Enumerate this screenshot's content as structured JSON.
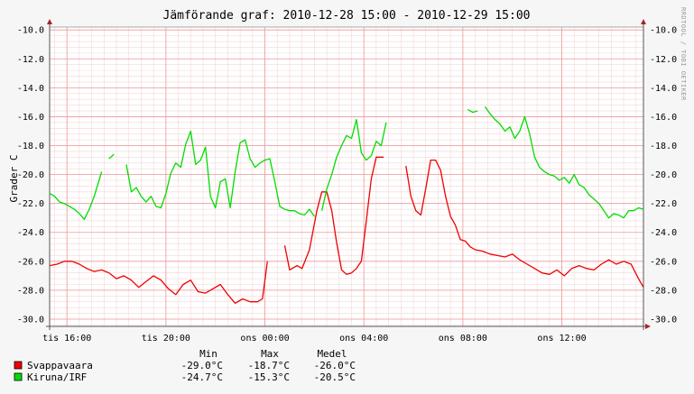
{
  "chart_data": {
    "type": "line",
    "title": "Jämförande graf: 2010-12-28 15:00 - 2010-12-29 15:00",
    "ylabel": "Grader C",
    "watermark": "RRDTOOL / TOBI OETIKER",
    "ylim": [
      -30.5,
      -9.8
    ],
    "xlim_hours": [
      15.3,
      39.3
    ],
    "y_ticks": [
      "-10.0",
      "-12.0",
      "-14.0",
      "-16.0",
      "-18.0",
      "-20.0",
      "-22.0",
      "-24.0",
      "-26.0",
      "-28.0",
      "-30.0"
    ],
    "y_tick_values": [
      -10,
      -12,
      -14,
      -16,
      -18,
      -20,
      -22,
      -24,
      -26,
      -28,
      -30
    ],
    "x_ticks": [
      {
        "label": "tis 16:00",
        "hour": 16
      },
      {
        "label": "tis 20:00",
        "hour": 20
      },
      {
        "label": "ons 00:00",
        "hour": 24
      },
      {
        "label": "ons 04:00",
        "hour": 28
      },
      {
        "label": "ons 08:00",
        "hour": 32
      },
      {
        "label": "ons 12:00",
        "hour": 36
      }
    ],
    "grid": true,
    "legend_header": {
      "min": "Min",
      "max": "Max",
      "avg": "Medel"
    },
    "series": [
      {
        "name": "Svappavaara",
        "color": "#ee0000",
        "stats": {
          "min": "-29.0°C",
          "max": "-18.7°C",
          "avg": "-26.0°C"
        },
        "segments": [
          [
            [
              15.3,
              -26.3
            ],
            [
              15.6,
              -26.2
            ],
            [
              15.9,
              -26.0
            ],
            [
              16.2,
              -26.0
            ],
            [
              16.5,
              -26.2
            ],
            [
              16.8,
              -26.5
            ],
            [
              17.1,
              -26.7
            ],
            [
              17.4,
              -26.6
            ],
            [
              17.7,
              -26.8
            ],
            [
              18.0,
              -27.2
            ],
            [
              18.3,
              -27.0
            ],
            [
              18.6,
              -27.3
            ],
            [
              18.9,
              -27.8
            ],
            [
              19.2,
              -27.4
            ],
            [
              19.5,
              -27.0
            ],
            [
              19.8,
              -27.3
            ],
            [
              20.1,
              -27.9
            ],
            [
              20.4,
              -28.3
            ],
            [
              20.7,
              -27.6
            ],
            [
              21.0,
              -27.3
            ],
            [
              21.3,
              -28.1
            ],
            [
              21.6,
              -28.2
            ],
            [
              21.9,
              -27.9
            ],
            [
              22.2,
              -27.6
            ],
            [
              22.5,
              -28.3
            ],
            [
              22.8,
              -28.9
            ],
            [
              23.1,
              -28.6
            ],
            [
              23.4,
              -28.8
            ],
            [
              23.7,
              -28.8
            ],
            [
              23.9,
              -28.6
            ],
            [
              24.1,
              -26.0
            ]
          ],
          [
            [
              24.8,
              -24.9
            ],
            [
              25.0,
              -26.6
            ],
            [
              25.3,
              -26.3
            ],
            [
              25.5,
              -26.5
            ],
            [
              25.8,
              -25.2
            ],
            [
              26.1,
              -22.5
            ],
            [
              26.3,
              -21.2
            ],
            [
              26.5,
              -21.2
            ],
            [
              26.7,
              -22.5
            ],
            [
              26.9,
              -24.7
            ],
            [
              27.1,
              -26.6
            ],
            [
              27.3,
              -26.9
            ],
            [
              27.5,
              -26.8
            ],
            [
              27.7,
              -26.5
            ],
            [
              27.9,
              -26.0
            ],
            [
              28.1,
              -23.2
            ],
            [
              28.3,
              -20.3
            ],
            [
              28.5,
              -18.8
            ],
            [
              28.8,
              -18.8
            ]
          ],
          [
            [
              29.7,
              -19.4
            ],
            [
              29.9,
              -21.5
            ],
            [
              30.1,
              -22.5
            ],
            [
              30.3,
              -22.8
            ],
            [
              30.5,
              -21.0
            ],
            [
              30.7,
              -19.0
            ],
            [
              30.9,
              -19.0
            ],
            [
              31.1,
              -19.7
            ],
            [
              31.3,
              -21.5
            ],
            [
              31.5,
              -22.9
            ],
            [
              31.7,
              -23.5
            ],
            [
              31.9,
              -24.5
            ],
            [
              32.1,
              -24.6
            ],
            [
              32.3,
              -25.0
            ],
            [
              32.5,
              -25.2
            ],
            [
              32.8,
              -25.3
            ],
            [
              33.1,
              -25.5
            ],
            [
              33.4,
              -25.6
            ],
            [
              33.7,
              -25.7
            ],
            [
              34.0,
              -25.5
            ],
            [
              34.3,
              -25.9
            ],
            [
              34.6,
              -26.2
            ],
            [
              34.9,
              -26.5
            ],
            [
              35.2,
              -26.8
            ],
            [
              35.5,
              -26.9
            ],
            [
              35.8,
              -26.6
            ],
            [
              36.1,
              -27.0
            ],
            [
              36.4,
              -26.5
            ],
            [
              36.7,
              -26.3
            ],
            [
              37.0,
              -26.5
            ],
            [
              37.3,
              -26.6
            ],
            [
              37.6,
              -26.2
            ],
            [
              37.9,
              -25.9
            ],
            [
              38.2,
              -26.2
            ],
            [
              38.5,
              -26.0
            ],
            [
              38.8,
              -26.2
            ],
            [
              39.1,
              -27.2
            ],
            [
              39.3,
              -27.8
            ]
          ]
        ]
      },
      {
        "name": "Kiruna/IRF",
        "color": "#00dd00",
        "stats": {
          "min": "-24.7°C",
          "max": "-15.3°C",
          "avg": "-20.5°C"
        },
        "segments": [
          [
            [
              15.3,
              -21.3
            ],
            [
              15.5,
              -21.5
            ],
            [
              15.7,
              -21.9
            ],
            [
              15.9,
              -22.0
            ],
            [
              16.1,
              -22.2
            ],
            [
              16.3,
              -22.4
            ],
            [
              16.5,
              -22.7
            ],
            [
              16.7,
              -23.1
            ],
            [
              16.9,
              -22.4
            ],
            [
              17.1,
              -21.5
            ],
            [
              17.3,
              -20.4
            ],
            [
              17.4,
              -19.8
            ]
          ],
          [
            [
              17.7,
              -18.9
            ],
            [
              17.9,
              -18.6
            ]
          ],
          [
            [
              18.4,
              -19.3
            ],
            [
              18.6,
              -21.2
            ],
            [
              18.8,
              -20.9
            ],
            [
              19.0,
              -21.5
            ],
            [
              19.2,
              -21.9
            ],
            [
              19.4,
              -21.5
            ],
            [
              19.6,
              -22.2
            ],
            [
              19.8,
              -22.3
            ],
            [
              20.0,
              -21.3
            ],
            [
              20.2,
              -19.9
            ],
            [
              20.4,
              -19.2
            ],
            [
              20.6,
              -19.5
            ],
            [
              20.8,
              -17.9
            ],
            [
              21.0,
              -17.0
            ],
            [
              21.2,
              -19.3
            ],
            [
              21.4,
              -19.0
            ],
            [
              21.6,
              -18.1
            ],
            [
              21.8,
              -21.5
            ],
            [
              22.0,
              -22.3
            ],
            [
              22.2,
              -20.5
            ],
            [
              22.4,
              -20.3
            ],
            [
              22.6,
              -22.3
            ],
            [
              22.8,
              -19.8
            ],
            [
              23.0,
              -17.8
            ],
            [
              23.2,
              -17.6
            ],
            [
              23.4,
              -18.9
            ],
            [
              23.6,
              -19.5
            ],
            [
              23.8,
              -19.2
            ],
            [
              24.0,
              -19.0
            ],
            [
              24.2,
              -18.9
            ],
            [
              24.4,
              -20.5
            ],
            [
              24.6,
              -22.2
            ],
            [
              24.8,
              -22.4
            ],
            [
              25.0,
              -22.5
            ],
            [
              25.2,
              -22.5
            ],
            [
              25.4,
              -22.7
            ],
            [
              25.6,
              -22.8
            ],
            [
              25.8,
              -22.4
            ],
            [
              26.0,
              -22.9
            ]
          ],
          [
            [
              26.3,
              -22.5
            ],
            [
              26.5,
              -21.0
            ],
            [
              26.7,
              -20.0
            ],
            [
              26.9,
              -18.8
            ],
            [
              27.1,
              -18.0
            ],
            [
              27.3,
              -17.3
            ],
            [
              27.5,
              -17.5
            ],
            [
              27.7,
              -16.2
            ],
            [
              27.9,
              -18.5
            ],
            [
              28.1,
              -19.0
            ],
            [
              28.3,
              -18.7
            ],
            [
              28.5,
              -17.7
            ],
            [
              28.7,
              -18.0
            ],
            [
              28.9,
              -16.4
            ]
          ],
          [
            [
              32.2,
              -15.5
            ],
            [
              32.4,
              -15.7
            ],
            [
              32.6,
              -15.6
            ]
          ],
          [
            [
              32.9,
              -15.3
            ],
            [
              33.1,
              -15.8
            ],
            [
              33.3,
              -16.2
            ],
            [
              33.5,
              -16.5
            ],
            [
              33.7,
              -17.0
            ],
            [
              33.9,
              -16.7
            ],
            [
              34.1,
              -17.5
            ],
            [
              34.3,
              -17.0
            ],
            [
              34.5,
              -16.0
            ],
            [
              34.7,
              -17.2
            ],
            [
              34.9,
              -18.8
            ],
            [
              35.1,
              -19.5
            ],
            [
              35.3,
              -19.8
            ],
            [
              35.5,
              -20.0
            ],
            [
              35.7,
              -20.1
            ],
            [
              35.9,
              -20.4
            ],
            [
              36.1,
              -20.2
            ],
            [
              36.3,
              -20.6
            ],
            [
              36.5,
              -20.0
            ],
            [
              36.7,
              -20.7
            ],
            [
              36.9,
              -20.9
            ],
            [
              37.1,
              -21.4
            ],
            [
              37.3,
              -21.7
            ],
            [
              37.5,
              -22.0
            ],
            [
              37.7,
              -22.5
            ],
            [
              37.9,
              -23.0
            ],
            [
              38.1,
              -22.7
            ],
            [
              38.3,
              -22.8
            ],
            [
              38.5,
              -23.0
            ],
            [
              38.7,
              -22.5
            ],
            [
              38.9,
              -22.5
            ],
            [
              39.1,
              -22.3
            ],
            [
              39.3,
              -22.4
            ]
          ]
        ]
      }
    ]
  }
}
